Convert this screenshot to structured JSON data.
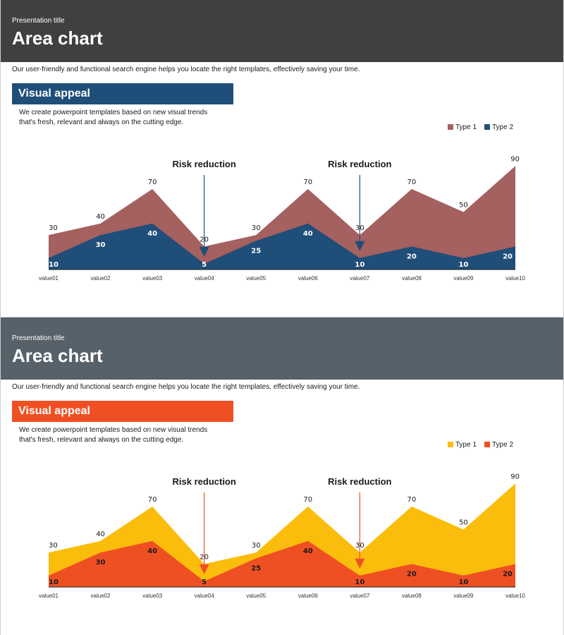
{
  "slides": [
    {
      "kicker": "Presentation title",
      "title": "Area chart",
      "description": "Our user-friendly  and functional  search engine helps  you locate the right templates, effectively  saving  your time.",
      "section_label": "Visual appeal",
      "body_line1": "We create powerpoint  templates based on new visual trends",
      "body_line2": "that's fresh, relevant  and always on the cutting edge.",
      "colors": {
        "type1": "#a56060",
        "type2": "#1f4e79",
        "arrow": "#1f4e79",
        "label2": "#ffffff"
      }
    },
    {
      "kicker": "Presentation title",
      "title": "Area chart",
      "description": "Our user-friendly  and functional  search engine helps  you locate the right templates, effectively  saving  your time.",
      "section_label": "Visual appeal",
      "body_line1": "We create powerpoint  templates based on new visual trends",
      "body_line2": "that's fresh, relevant  and always on the cutting edge.",
      "colors": {
        "type1": "#fbbd0b",
        "type2": "#ef5023",
        "arrow": "#ef5023",
        "label2": "#1a1a1a"
      }
    }
  ],
  "chart_data": {
    "type": "area",
    "categories": [
      "value01",
      "value02",
      "value03",
      "value04",
      "value05",
      "value06",
      "value07",
      "value08",
      "value09",
      "value10"
    ],
    "series": [
      {
        "name": "Type 1",
        "values": [
          30,
          40,
          70,
          20,
          30,
          70,
          30,
          70,
          50,
          90
        ]
      },
      {
        "name": "Type 2",
        "values": [
          10,
          30,
          40,
          5,
          25,
          40,
          10,
          20,
          10,
          20
        ]
      }
    ],
    "annotations": [
      {
        "text": "Risk reduction",
        "category": "value04"
      },
      {
        "text": "Risk reduction",
        "category": "value07"
      }
    ],
    "legend": "top-right",
    "ylim": [
      0,
      90
    ]
  }
}
